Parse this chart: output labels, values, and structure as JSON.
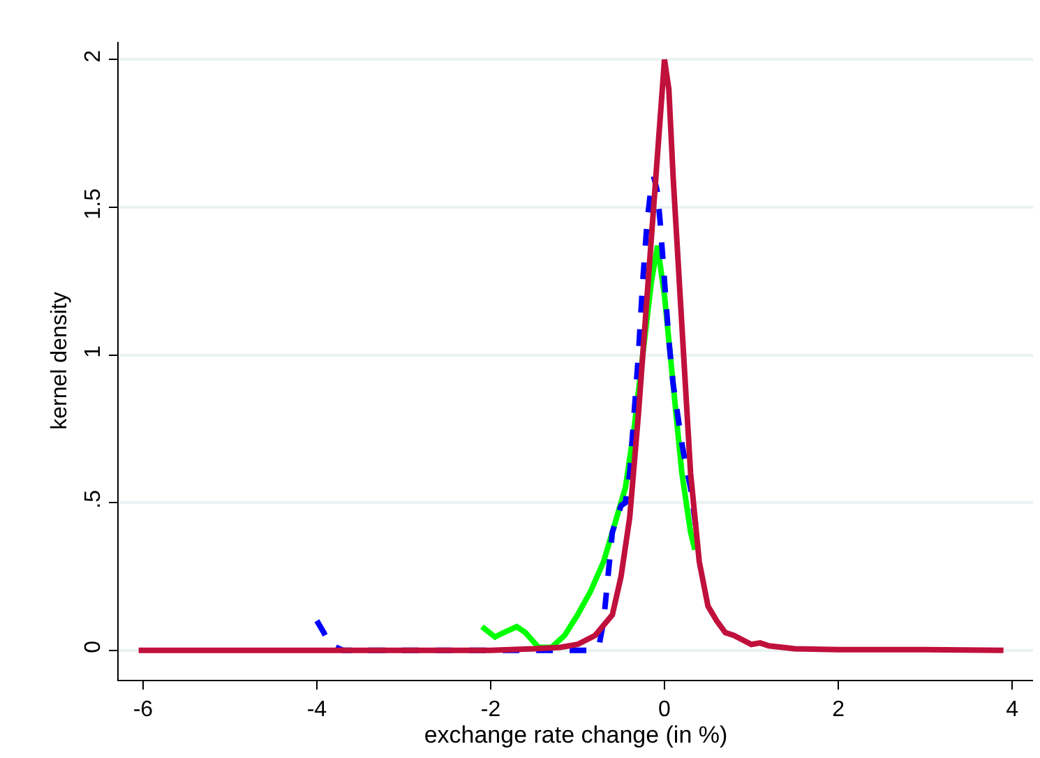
{
  "chart_data": {
    "type": "line",
    "xlabel": "exchange rate change (in %)",
    "ylabel": "kernel density",
    "xlim": [
      -6.28,
      4.24
    ],
    "ylim": [
      -0.1,
      2.06
    ],
    "xticks": [
      -6,
      -4,
      -2,
      0,
      2,
      4
    ],
    "yticks": [
      0,
      {
        "value": 0.5,
        "label": ".5"
      },
      1,
      1.5,
      2
    ],
    "grid": "y",
    "series": [
      {
        "color": "#00ff00",
        "line_style": "solid",
        "x": [
          -2.1,
          -1.95,
          -1.85,
          -1.7,
          -1.6,
          -1.45,
          -1.3,
          -1.15,
          -1.0,
          -0.85,
          -0.7,
          -0.55,
          -0.45,
          -0.35,
          -0.25,
          -0.15,
          -0.08,
          0,
          0.1,
          0.2,
          0.3,
          0.35
        ],
        "values": [
          0.08,
          0.045,
          0.06,
          0.08,
          0.06,
          0.01,
          0.01,
          0.05,
          0.12,
          0.2,
          0.3,
          0.45,
          0.55,
          0.75,
          1.0,
          1.25,
          1.37,
          1.2,
          0.9,
          0.6,
          0.4,
          0.34
        ]
      },
      {
        "color": "#0000ff",
        "line_style": "dashed",
        "x": [
          -4.0,
          -3.92,
          -3.85,
          -3.7,
          -3.0,
          -2.0,
          -1.0,
          -0.85,
          -0.75,
          -0.7,
          -0.65,
          -0.6,
          -0.5,
          -0.45,
          -0.4,
          -0.35,
          -0.3,
          -0.25,
          -0.2,
          -0.15,
          -0.12,
          -0.08,
          -0.05,
          0,
          0.05,
          0.1,
          0.15,
          0.2,
          0.25,
          0.3,
          0.36
        ],
        "values": [
          0.1,
          0.06,
          0.02,
          0.0,
          0.0,
          0.0,
          0.0,
          0.0,
          0.02,
          0.1,
          0.25,
          0.4,
          0.49,
          0.5,
          0.6,
          0.8,
          1.0,
          1.25,
          1.45,
          1.58,
          1.6,
          1.55,
          1.45,
          1.25,
          1.05,
          0.9,
          0.8,
          0.7,
          0.62,
          0.55,
          0.42
        ]
      },
      {
        "color": "#c0103c",
        "line_style": "solid",
        "x": [
          -6.05,
          -5.0,
          -4.0,
          -3.0,
          -2.0,
          -1.5,
          -1.2,
          -1.0,
          -0.8,
          -0.6,
          -0.5,
          -0.4,
          -0.3,
          -0.2,
          -0.1,
          0,
          0.05,
          0.1,
          0.2,
          0.3,
          0.4,
          0.5,
          0.6,
          0.7,
          0.8,
          1.0,
          1.1,
          1.2,
          1.5,
          2.0,
          3.0,
          3.9
        ],
        "values": [
          0.0,
          0.0,
          0.0,
          0.0,
          0.0,
          0.005,
          0.01,
          0.02,
          0.05,
          0.12,
          0.25,
          0.45,
          0.8,
          1.2,
          1.6,
          2.0,
          1.9,
          1.6,
          1.1,
          0.6,
          0.3,
          0.15,
          0.1,
          0.06,
          0.05,
          0.02,
          0.025,
          0.015,
          0.005,
          0.002,
          0.002,
          0.0
        ]
      }
    ]
  }
}
